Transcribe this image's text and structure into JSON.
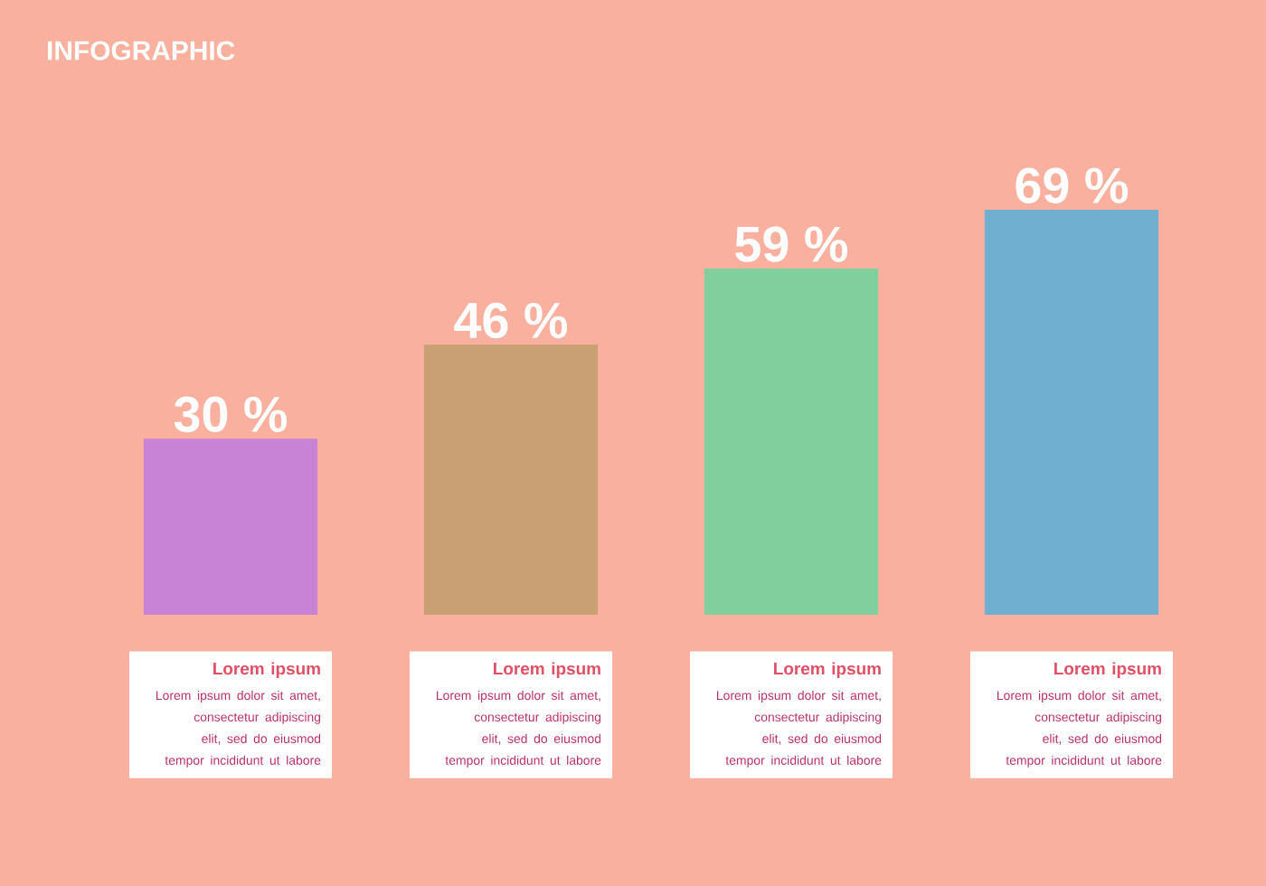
{
  "chart_data": {
    "type": "bar",
    "title": "INFOGRAPHIC",
    "categories": [
      null,
      null,
      null,
      null
    ],
    "values": [
      30,
      46,
      59,
      69
    ],
    "colors": [
      "#c983d6",
      "#c9a074",
      "#80cf9c",
      "#70afcf"
    ],
    "value_labels": [
      "30 %",
      "46 %",
      "59 %",
      "69 %"
    ],
    "annotations": [
      "Lorem ipsum",
      "Lorem ipsum dolor sit amet, consectetur adipiscing elit, sed do eiusmod tempor incididunt ut labore",
      "Lorem ipsum",
      "Lorem ipsum dolor sit amet, consectetur adipiscing elit, sed do eiusmod tempor incididunt ut labore",
      "Lorem ipsum",
      "Lorem ipsum dolor sit amet, consectetur adipiscing elit, sed do eiusmod tempor incididunt ut labore",
      "Lorem ipsum",
      "Lorem ipsum dolor sit amet, consectetur adipiscing elit, sed do eiusmod tempor incididunt ut labore"
    ]
  }
}
